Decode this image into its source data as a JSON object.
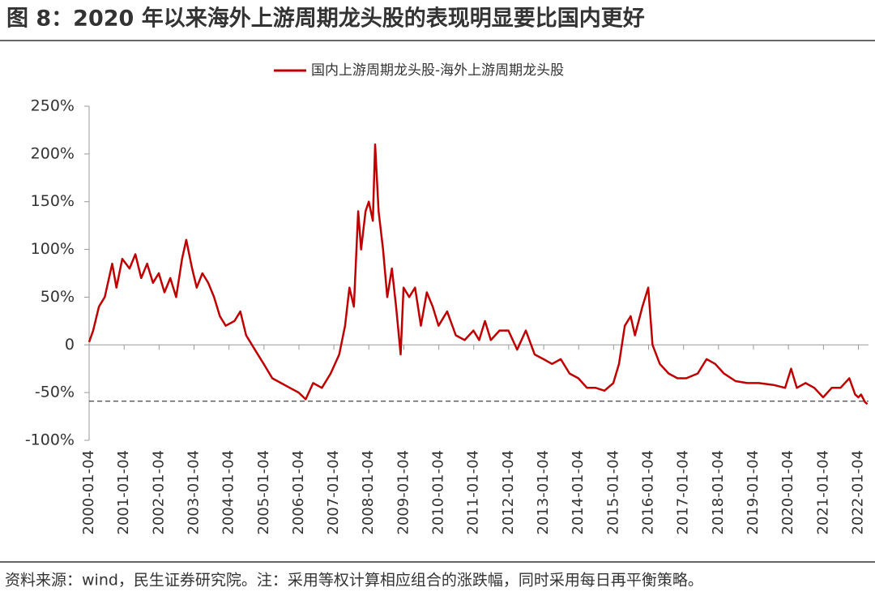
{
  "chart_data": {
    "type": "line",
    "title": "图 8：2020 年以来海外上游周期龙头股的表现明显要比国内更好",
    "source": "资料来源：wind，民生证券研究院。注：采用等权计算相应组合的涨跌幅，同时采用每日再平衡策略。",
    "x": [
      "2000-01-04",
      "2000-02-15",
      "2000-04-15",
      "2000-06-15",
      "2000-09-01",
      "2000-10-15",
      "2000-12-15",
      "2001-03-01",
      "2001-05-01",
      "2001-07-01",
      "2001-09-01",
      "2001-11-01",
      "2002-01-01",
      "2002-03-01",
      "2002-05-01",
      "2002-07-01",
      "2002-09-01",
      "2002-10-15",
      "2002-12-15",
      "2003-02-01",
      "2003-04-01",
      "2003-06-01",
      "2003-08-01",
      "2003-10-01",
      "2003-12-01",
      "2004-03-01",
      "2004-05-01",
      "2004-07-01",
      "2004-10-01",
      "2005-01-01",
      "2005-04-01",
      "2005-07-01",
      "2005-10-01",
      "2006-01-01",
      "2006-03-15",
      "2006-06-01",
      "2006-09-01",
      "2006-12-01",
      "2007-03-01",
      "2007-05-01",
      "2007-06-15",
      "2007-08-01",
      "2007-09-15",
      "2007-10-15",
      "2007-12-01",
      "2008-01-04",
      "2008-02-15",
      "2008-03-10",
      "2008-04-15",
      "2008-06-01",
      "2008-07-15",
      "2008-09-01",
      "2008-10-15",
      "2008-12-01",
      "2009-01-01",
      "2009-03-01",
      "2009-05-01",
      "2009-07-01",
      "2009-09-01",
      "2009-11-01",
      "2010-01-01",
      "2010-04-01",
      "2010-07-01",
      "2010-10-01",
      "2011-01-01",
      "2011-03-01",
      "2011-05-01",
      "2011-07-01",
      "2011-10-01",
      "2012-01-01",
      "2012-04-01",
      "2012-07-01",
      "2012-10-01",
      "2013-01-01",
      "2013-04-01",
      "2013-07-01",
      "2013-10-01",
      "2014-01-01",
      "2014-04-01",
      "2014-07-01",
      "2014-10-01",
      "2015-01-01",
      "2015-03-01",
      "2015-05-01",
      "2015-07-01",
      "2015-08-15",
      "2015-11-01",
      "2016-01-01",
      "2016-02-15",
      "2016-05-01",
      "2016-08-01",
      "2016-11-01",
      "2017-02-01",
      "2017-06-01",
      "2017-09-01",
      "2017-12-01",
      "2018-03-01",
      "2018-07-01",
      "2018-11-01",
      "2019-03-01",
      "2019-08-01",
      "2019-12-01",
      "2020-02-01",
      "2020-04-01",
      "2020-07-01",
      "2020-10-01",
      "2021-01-01",
      "2021-04-01",
      "2021-07-01",
      "2021-10-01",
      "2021-12-01",
      "2022-01-04",
      "2022-02-01",
      "2022-03-15",
      "2022-04-08"
    ],
    "series": [
      {
        "name": "国内上游周期龙头股-海外上游周期龙头股",
        "color": "#c00000",
        "values": [
          3,
          15,
          40,
          50,
          85,
          60,
          90,
          80,
          95,
          70,
          85,
          65,
          75,
          55,
          70,
          50,
          90,
          110,
          80,
          60,
          75,
          65,
          50,
          30,
          20,
          25,
          35,
          10,
          -5,
          -20,
          -35,
          -40,
          -45,
          -50,
          -57,
          -40,
          -45,
          -30,
          -10,
          20,
          60,
          40,
          140,
          100,
          140,
          150,
          130,
          210,
          140,
          100,
          50,
          80,
          40,
          -10,
          60,
          50,
          60,
          20,
          55,
          40,
          20,
          35,
          10,
          5,
          15,
          5,
          25,
          5,
          15,
          15,
          -5,
          15,
          -10,
          -15,
          -20,
          -15,
          -30,
          -35,
          -45,
          -45,
          -48,
          -40,
          -20,
          20,
          30,
          10,
          40,
          60,
          0,
          -20,
          -30,
          -35,
          -35,
          -30,
          -15,
          -20,
          -30,
          -38,
          -40,
          -40,
          -42,
          -45,
          -25,
          -45,
          -40,
          -45,
          -55,
          -45,
          -45,
          -35,
          -52,
          -55,
          -52,
          -60,
          -62
        ]
      }
    ],
    "reference_line": -59,
    "xlim": [
      "2000-01-04",
      "2022-04-20"
    ],
    "xticks": [
      "2000-01-04",
      "2001-01-04",
      "2002-01-04",
      "2003-01-04",
      "2004-01-04",
      "2005-01-04",
      "2006-01-04",
      "2007-01-04",
      "2008-01-04",
      "2009-01-04",
      "2010-01-04",
      "2011-01-04",
      "2012-01-04",
      "2013-01-04",
      "2014-01-04",
      "2015-01-04",
      "2016-01-04",
      "2017-01-04",
      "2018-01-04",
      "2019-01-04",
      "2020-01-04",
      "2021-01-04",
      "2022-01-04"
    ],
    "ylim": [
      -100,
      250
    ],
    "yticks": [
      {
        "value": -100,
        "label": "-100%"
      },
      {
        "value": -50,
        "label": "-50%"
      },
      0,
      {
        "value": 50,
        "label": "50%"
      },
      {
        "value": 100,
        "label": "100%"
      },
      {
        "value": 150,
        "label": "150%"
      },
      {
        "value": 200,
        "label": "200%"
      },
      {
        "value": 250,
        "label": "250%"
      }
    ],
    "legend": "top"
  }
}
